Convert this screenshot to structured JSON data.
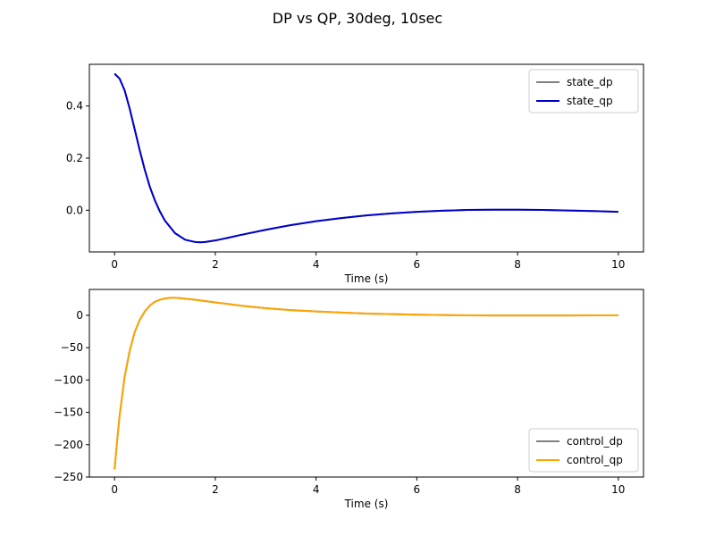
{
  "figure": {
    "title": "DP vs QP, 30deg, 10sec"
  },
  "chart_data": [
    {
      "type": "line",
      "title": "",
      "xlabel": "Time (s)",
      "ylabel": "",
      "xlim": [
        -0.5,
        10.5
      ],
      "ylim": [
        -0.16,
        0.56
      ],
      "xticks": [
        0,
        2,
        4,
        6,
        8,
        10
      ],
      "yticks": [
        0.0,
        0.2,
        0.4
      ],
      "ytick_labels": [
        "0.0",
        "0.2",
        "0.4"
      ],
      "grid": false,
      "legend": "upper right",
      "series": [
        {
          "name": "state_dp",
          "color": "#808080",
          "x": [
            0,
            0.1,
            0.2,
            0.3,
            0.4,
            0.5,
            0.6,
            0.7,
            0.8,
            0.9,
            1.0,
            1.2,
            1.4,
            1.6,
            1.7,
            1.8,
            2.0,
            2.2,
            2.5,
            3.0,
            3.5,
            4.0,
            4.5,
            5.0,
            5.5,
            6.0,
            6.5,
            7.0,
            7.5,
            8.0,
            8.5,
            9.0,
            9.5,
            10.0
          ],
          "y": [
            0.524,
            0.505,
            0.46,
            0.39,
            0.31,
            0.23,
            0.155,
            0.09,
            0.038,
            -0.005,
            -0.04,
            -0.088,
            -0.113,
            -0.122,
            -0.123,
            -0.122,
            -0.116,
            -0.108,
            -0.095,
            -0.075,
            -0.057,
            -0.042,
            -0.03,
            -0.02,
            -0.012,
            -0.006,
            -0.002,
            0.001,
            0.002,
            0.002,
            0.001,
            -0.001,
            -0.003,
            -0.006
          ]
        },
        {
          "name": "state_qp",
          "color": "#0000cd",
          "x": [
            0,
            0.1,
            0.2,
            0.3,
            0.4,
            0.5,
            0.6,
            0.7,
            0.8,
            0.9,
            1.0,
            1.2,
            1.4,
            1.6,
            1.7,
            1.8,
            2.0,
            2.2,
            2.5,
            3.0,
            3.5,
            4.0,
            4.5,
            5.0,
            5.5,
            6.0,
            6.5,
            7.0,
            7.5,
            8.0,
            8.5,
            9.0,
            9.5,
            10.0
          ],
          "y": [
            0.524,
            0.505,
            0.46,
            0.39,
            0.31,
            0.23,
            0.155,
            0.09,
            0.038,
            -0.005,
            -0.04,
            -0.088,
            -0.113,
            -0.122,
            -0.123,
            -0.122,
            -0.116,
            -0.108,
            -0.095,
            -0.075,
            -0.057,
            -0.042,
            -0.03,
            -0.02,
            -0.012,
            -0.006,
            -0.002,
            0.001,
            0.002,
            0.002,
            0.001,
            -0.001,
            -0.003,
            -0.006
          ]
        }
      ]
    },
    {
      "type": "line",
      "title": "",
      "xlabel": "Time (s)",
      "ylabel": "",
      "xlim": [
        -0.5,
        10.5
      ],
      "ylim": [
        -250,
        40
      ],
      "xticks": [
        0,
        2,
        4,
        6,
        8,
        10
      ],
      "yticks": [
        -250,
        -200,
        -150,
        -100,
        -50,
        0
      ],
      "ytick_labels": [
        "−250",
        "−200",
        "−150",
        "−100",
        "−50",
        "0"
      ],
      "grid": false,
      "legend": "lower right",
      "series": [
        {
          "name": "control_dp",
          "color": "#808080",
          "x": [
            0,
            0.05,
            0.1,
            0.2,
            0.3,
            0.4,
            0.5,
            0.6,
            0.7,
            0.8,
            0.9,
            1.0,
            1.1,
            1.2,
            1.3,
            1.5,
            1.8,
            2.0,
            2.5,
            3.0,
            3.5,
            4.0,
            4.5,
            5.0,
            5.5,
            6.0,
            6.5,
            7.0,
            7.5,
            8.0,
            8.5,
            9.0,
            9.5,
            10.0
          ],
          "y": [
            -238,
            -195,
            -155,
            -95,
            -55,
            -26,
            -7,
            6,
            15,
            21,
            24,
            26,
            27,
            27,
            26.5,
            25,
            22,
            20,
            15,
            11,
            8,
            6,
            4.2,
            2.8,
            1.8,
            1.0,
            0.4,
            0.0,
            -0.2,
            -0.3,
            -0.3,
            -0.2,
            -0.1,
            0.0
          ]
        },
        {
          "name": "control_qp",
          "color": "#ffa500",
          "x": [
            0,
            0.05,
            0.1,
            0.2,
            0.3,
            0.4,
            0.5,
            0.6,
            0.7,
            0.8,
            0.9,
            1.0,
            1.1,
            1.2,
            1.3,
            1.5,
            1.8,
            2.0,
            2.5,
            3.0,
            3.5,
            4.0,
            4.5,
            5.0,
            5.5,
            6.0,
            6.5,
            7.0,
            7.5,
            8.0,
            8.5,
            9.0,
            9.5,
            10.0
          ],
          "y": [
            -238,
            -195,
            -155,
            -95,
            -55,
            -26,
            -7,
            6,
            15,
            21,
            24,
            26,
            27,
            27,
            26.5,
            25,
            22,
            20,
            15,
            11,
            8,
            6,
            4.2,
            2.8,
            1.8,
            1.0,
            0.4,
            0.0,
            -0.2,
            -0.3,
            -0.3,
            -0.2,
            -0.1,
            0.0
          ]
        }
      ]
    }
  ]
}
